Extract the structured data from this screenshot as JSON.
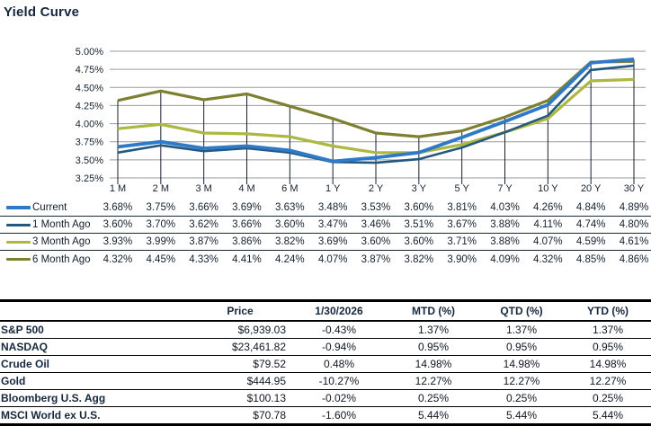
{
  "title": "Yield Curve",
  "chart_data": {
    "type": "line",
    "categories": [
      "1 M",
      "2 M",
      "3 M",
      "4 M",
      "6 M",
      "1 Y",
      "2 Y",
      "3 Y",
      "5 Y",
      "7 Y",
      "10 Y",
      "20 Y",
      "30 Y"
    ],
    "y_tick_labels": [
      "5.00%",
      "4.75%",
      "4.50%",
      "4.25%",
      "4.00%",
      "3.75%",
      "3.50%",
      "3.25%"
    ],
    "ylim": [
      3.25,
      5.0
    ],
    "ytick_step": 0.25,
    "grid": true,
    "grid_color": "#9b9b9b",
    "tick_line_color": "#16212e",
    "legend_position": "bottom-table",
    "series": [
      {
        "name": "Current",
        "color": "#2e79c8",
        "thickness": 3.8,
        "values": [
          3.68,
          3.75,
          3.66,
          3.69,
          3.63,
          3.48,
          3.53,
          3.6,
          3.81,
          4.03,
          4.26,
          4.84,
          4.89
        ]
      },
      {
        "name": "1 Month Ago",
        "color": "#24587f",
        "thickness": 2.6,
        "values": [
          3.6,
          3.7,
          3.62,
          3.66,
          3.6,
          3.47,
          3.46,
          3.51,
          3.67,
          3.88,
          4.11,
          4.74,
          4.8
        ]
      },
      {
        "name": "3 Month Ago",
        "color": "#acb83f",
        "thickness": 3.2,
        "values": [
          3.93,
          3.99,
          3.87,
          3.86,
          3.82,
          3.69,
          3.6,
          3.6,
          3.71,
          3.88,
          4.07,
          4.59,
          4.61
        ]
      },
      {
        "name": "6 Month Ago",
        "color": "#7d8030",
        "thickness": 3.2,
        "values": [
          4.32,
          4.45,
          4.33,
          4.41,
          4.24,
          4.07,
          3.87,
          3.82,
          3.9,
          4.09,
          4.32,
          4.85,
          4.86
        ]
      }
    ]
  },
  "market_table": {
    "headers": {
      "label": "",
      "price": "Price",
      "date": "1/30/2026",
      "mtd": "MTD (%)",
      "qtd": "QTD (%)",
      "ytd": "YTD (%)"
    },
    "rows": [
      {
        "label": "S&P 500",
        "price": "$6,939.03",
        "date": "-0.43%",
        "mtd": "1.37%",
        "qtd": "1.37%",
        "ytd": "1.37%"
      },
      {
        "label": "NASDAQ",
        "price": "$23,461.82",
        "date": "-0.94%",
        "mtd": "0.95%",
        "qtd": "0.95%",
        "ytd": "0.95%"
      },
      {
        "label": "Crude Oil",
        "price": "$79.52",
        "date": "0.48%",
        "mtd": "14.98%",
        "qtd": "14.98%",
        "ytd": "14.98%"
      },
      {
        "label": "Gold",
        "price": "$444.95",
        "date": "-10.27%",
        "mtd": "12.27%",
        "qtd": "12.27%",
        "ytd": "12.27%"
      },
      {
        "label": "Bloomberg U.S. Agg",
        "price": "$100.13",
        "date": "-0.02%",
        "mtd": "0.25%",
        "qtd": "0.25%",
        "ytd": "0.25%"
      },
      {
        "label": "MSCI World ex U.S.",
        "price": "$70.78",
        "date": "-1.60%",
        "mtd": "5.44%",
        "qtd": "5.44%",
        "ytd": "5.44%"
      }
    ]
  }
}
